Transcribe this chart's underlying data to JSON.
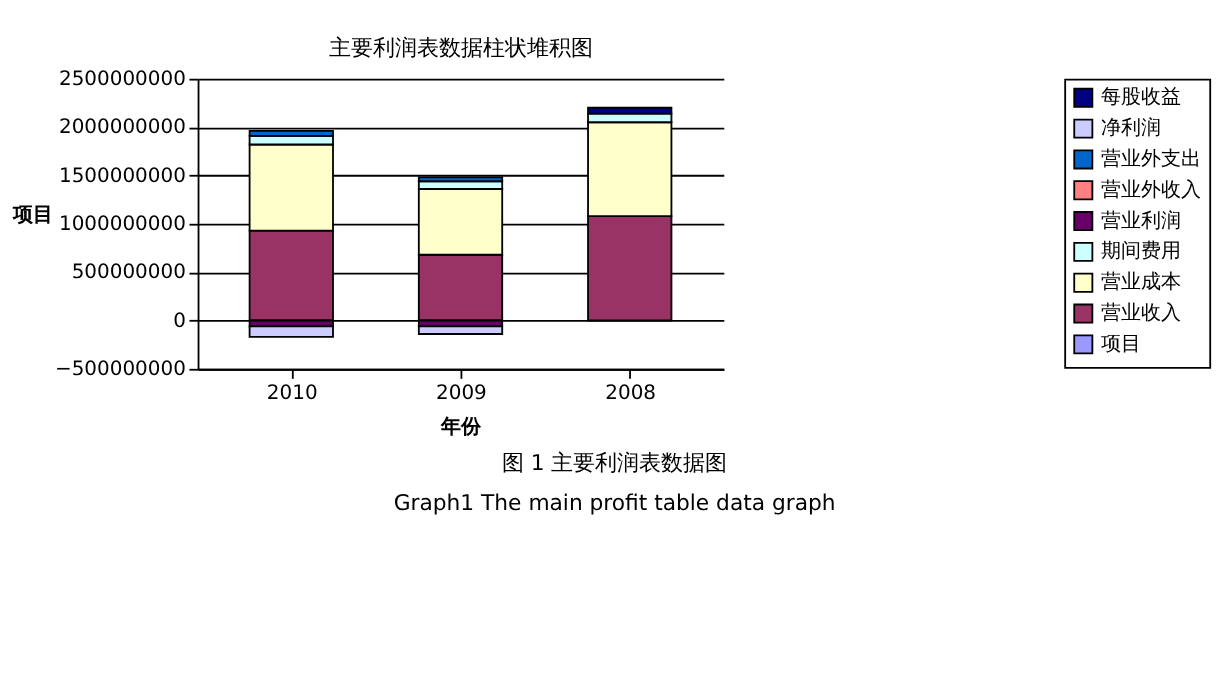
{
  "chart_data": {
    "type": "bar",
    "stacked": true,
    "title": "主要利润表数据柱状堆积图",
    "xlabel": "年份",
    "ylabel": "项目",
    "categories": [
      "2010",
      "2009",
      "2008"
    ],
    "series": [
      {
        "name": "项目",
        "color": "#9999ff",
        "values": [
          null,
          null,
          null
        ]
      },
      {
        "name": "营业收入",
        "color": "#993366",
        "values": [
          930000000,
          680000000,
          1080000000
        ]
      },
      {
        "name": "营业成本",
        "color": "#ffffcc",
        "values": [
          890000000,
          680000000,
          970000000
        ]
      },
      {
        "name": "期间费用",
        "color": "#ccffff",
        "values": [
          90000000,
          80000000,
          90000000
        ]
      },
      {
        "name": "营业利润",
        "color": "#660066",
        "values": [
          -60000000,
          -60000000,
          null
        ]
      },
      {
        "name": "营业外收入",
        "color": "#ff8080",
        "values": [
          null,
          null,
          null
        ]
      },
      {
        "name": "营业外支出",
        "color": "#0066cc",
        "values": [
          50000000,
          40000000,
          null
        ]
      },
      {
        "name": "净利润",
        "color": "#ccccff",
        "values": [
          -110000000,
          -80000000,
          null
        ]
      },
      {
        "name": "每股收益",
        "color": "#000080",
        "values": [
          null,
          null,
          60000000
        ]
      }
    ],
    "ylim": [
      -500000000,
      2500000000
    ],
    "yticks": [
      -500000000,
      0,
      500000000,
      1000000000,
      1500000000,
      2000000000,
      2500000000
    ],
    "grid": "y",
    "legend": "right",
    "annotations": [
      "图 1  主要利润表数据图",
      "Graph1    The main profit table data graph"
    ]
  }
}
